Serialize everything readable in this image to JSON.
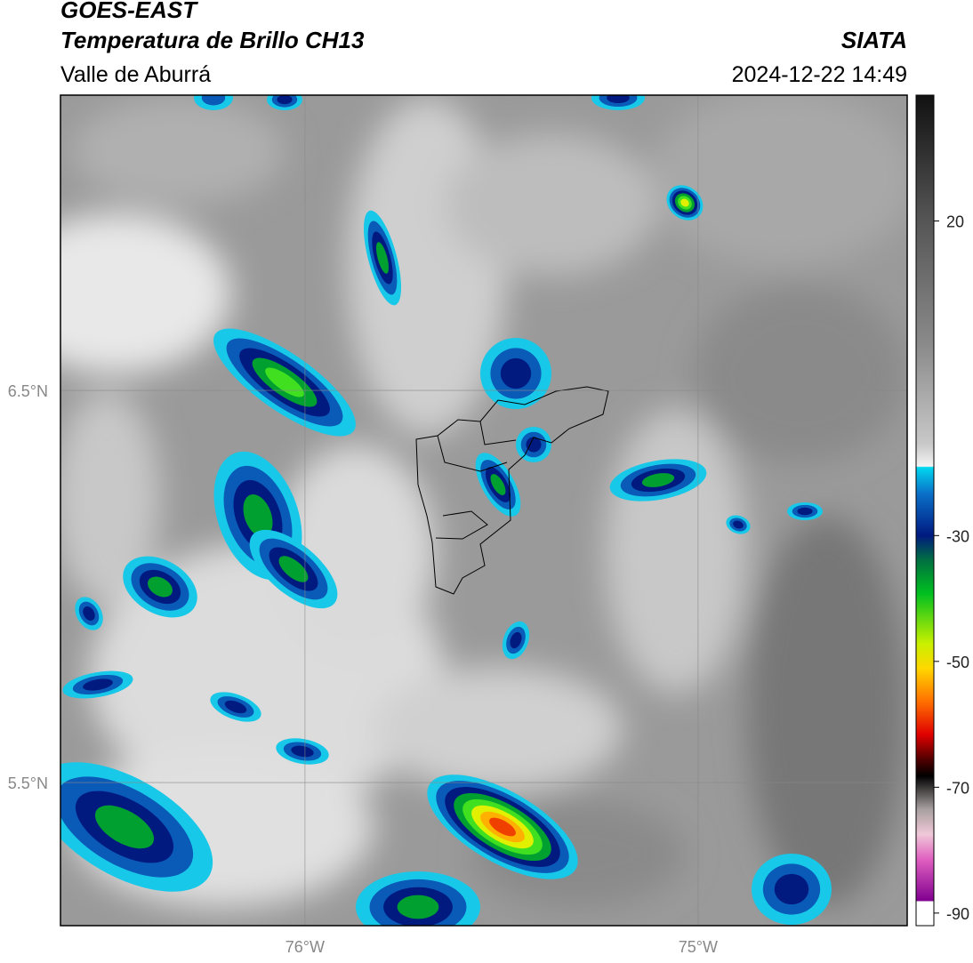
{
  "header": {
    "title": "GOES-EAST",
    "subtitle": "Temperatura de Brillo CH13",
    "region": "Valle de Aburrá",
    "source": "SIATA",
    "datetime": "2024-12-22 14:49"
  },
  "map": {
    "lon_range": [
      -76.622,
      -74.468
    ],
    "lat_range": [
      5.135,
      7.253
    ],
    "lon_ticks": [
      {
        "value": -76,
        "label": "76°W"
      },
      {
        "value": -75,
        "label": "75°W"
      }
    ],
    "lat_ticks": [
      {
        "value": 6.5,
        "label": "6.5°N"
      },
      {
        "value": 5.5,
        "label": "5.5°N"
      }
    ]
  },
  "colorbar": {
    "range": [
      -92,
      40
    ],
    "ticks": [
      20,
      -30,
      -50,
      -70,
      -90
    ]
  }
}
